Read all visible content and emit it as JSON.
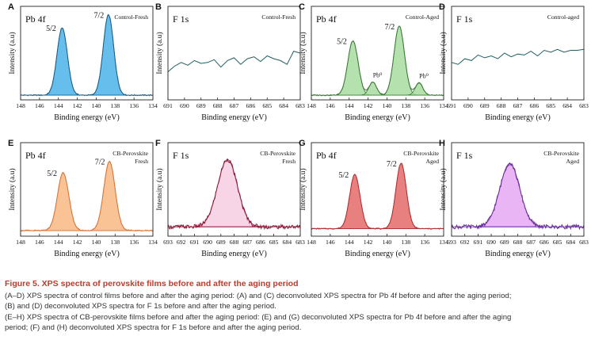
{
  "caption": {
    "title": "Figure 5.  XPS spectra of perovskite films before and after the aging period",
    "lines": [
      "(A–D) XPS spectra of control films before and after the aging period: (A) and (C) deconvoluted XPS spectra for Pb 4f before and after the aging period;",
      "(B) and (D) deconvoluted XPS spectra for F 1s before and after the aging period.",
      "(E–H) XPS spectra of CB-perovskite films before and after the aging period: (E) and (G) deconvoluted XPS spectra for Pb 4f before and after the aging",
      "period; (F) and (H) deconvoluted XPS spectra for F 1s before and after the aging period."
    ]
  },
  "chart_data": [
    {
      "panel": "A",
      "type": "line",
      "element": "Pb 4f",
      "sample": [
        "Control-Fresh"
      ],
      "xlabel": "Binding energy (eV)",
      "ylabel": "Intensity (a.u)",
      "xlim": [
        148,
        134
      ],
      "xticks": [
        "148",
        "146",
        "144",
        "142",
        "140",
        "138",
        "136",
        "134"
      ],
      "baseline": 0.05,
      "peaks": [
        {
          "center": 143.6,
          "width": 0.55,
          "height": 0.72,
          "label": "5/2"
        },
        {
          "center": 138.7,
          "width": 0.55,
          "height": 0.86,
          "label": "7/2"
        }
      ],
      "colors": {
        "line": "#1b5e86",
        "fill": "#4ab3e8"
      }
    },
    {
      "panel": "B",
      "type": "line",
      "element": "F 1s",
      "sample": [
        "Control-Fresh"
      ],
      "xlabel": "Binding energy (eV)",
      "ylabel": "Intensity (a.u)",
      "xlim": [
        691,
        683
      ],
      "xticks": [
        "691",
        "690",
        "689",
        "688",
        "687",
        "686",
        "685",
        "684",
        "683"
      ],
      "points": [
        [
          691,
          0.3
        ],
        [
          690.6,
          0.36
        ],
        [
          690.2,
          0.4
        ],
        [
          689.8,
          0.37
        ],
        [
          689.4,
          0.42
        ],
        [
          689,
          0.39
        ],
        [
          688.6,
          0.4
        ],
        [
          688.2,
          0.43
        ],
        [
          687.8,
          0.35
        ],
        [
          687.4,
          0.42
        ],
        [
          687,
          0.45
        ],
        [
          686.6,
          0.38
        ],
        [
          686.2,
          0.44
        ],
        [
          685.8,
          0.46
        ],
        [
          685.4,
          0.41
        ],
        [
          685,
          0.47
        ],
        [
          684.6,
          0.44
        ],
        [
          684.2,
          0.42
        ],
        [
          683.8,
          0.38
        ],
        [
          683.4,
          0.52
        ],
        [
          683,
          0.5
        ]
      ],
      "colors": {
        "line": "#1f5f5f",
        "fill": "none"
      }
    },
    {
      "panel": "C",
      "type": "line",
      "element": "Pb 4f",
      "sample": [
        "Control-Aged"
      ],
      "xlabel": "Binding energy (eV)",
      "ylabel": "Intensity (a.u)",
      "xlim": [
        148,
        134
      ],
      "xticks": [
        "148",
        "146",
        "144",
        "142",
        "140",
        "138",
        "136",
        "134"
      ],
      "baseline": 0.05,
      "peaks": [
        {
          "center": 143.6,
          "width": 0.55,
          "height": 0.58,
          "label": "5/2"
        },
        {
          "center": 141.5,
          "width": 0.4,
          "height": 0.14,
          "label": "Pb⁰"
        },
        {
          "center": 138.7,
          "width": 0.55,
          "height": 0.74,
          "label": "7/2"
        },
        {
          "center": 136.6,
          "width": 0.4,
          "height": 0.13,
          "label": "Pb⁰"
        }
      ],
      "colors": {
        "line": "#3a7a36",
        "fill": "#a8dca0"
      }
    },
    {
      "panel": "D",
      "type": "line",
      "element": "F 1s",
      "sample": [
        "Control-aged"
      ],
      "xlabel": "Binding energy (eV)",
      "ylabel": "Intensity (a.u)",
      "xlim": [
        691,
        683
      ],
      "xticks": [
        "691",
        "690",
        "689",
        "688",
        "687",
        "686",
        "685",
        "684",
        "683"
      ],
      "points": [
        [
          691,
          0.4
        ],
        [
          690.6,
          0.38
        ],
        [
          690.2,
          0.44
        ],
        [
          689.8,
          0.42
        ],
        [
          689.4,
          0.48
        ],
        [
          689,
          0.45
        ],
        [
          688.6,
          0.47
        ],
        [
          688.2,
          0.44
        ],
        [
          687.8,
          0.5
        ],
        [
          687.4,
          0.46
        ],
        [
          687,
          0.49
        ],
        [
          686.6,
          0.48
        ],
        [
          686.2,
          0.52
        ],
        [
          685.8,
          0.47
        ],
        [
          685.4,
          0.53
        ],
        [
          685,
          0.51
        ],
        [
          684.6,
          0.54
        ],
        [
          684.2,
          0.51
        ],
        [
          683.8,
          0.53
        ],
        [
          683.4,
          0.53
        ],
        [
          683,
          0.54
        ]
      ],
      "colors": {
        "line": "#1f5f5f",
        "fill": "none"
      }
    },
    {
      "panel": "E",
      "type": "line",
      "element": "Pb 4f",
      "sample": [
        "CB-Perovskite",
        "Fresh"
      ],
      "xlabel": "Binding energy (eV)",
      "ylabel": "Intensity (a.u)",
      "xlim": [
        148,
        134
      ],
      "xticks": [
        "148",
        "146",
        "144",
        "142",
        "140",
        "138",
        "136",
        "134"
      ],
      "baseline": 0.06,
      "peaks": [
        {
          "center": 143.5,
          "width": 0.6,
          "height": 0.62,
          "label": "5/2"
        },
        {
          "center": 138.6,
          "width": 0.6,
          "height": 0.74,
          "label": "7/2"
        }
      ],
      "colors": {
        "line": "#d8743a",
        "fill": "#f8b884"
      }
    },
    {
      "panel": "F",
      "type": "line",
      "element": "F 1s",
      "sample": [
        "CB-Perovskite",
        "Fresh"
      ],
      "xlabel": "Binding energy (eV)",
      "ylabel": "Intensity (a.u)",
      "xlim": [
        693,
        683
      ],
      "xticks": [
        "693",
        "692",
        "691",
        "690",
        "689",
        "688",
        "687",
        "686",
        "685",
        "684",
        "683"
      ],
      "baseline": 0.1,
      "peaks": [
        {
          "center": 688.5,
          "width": 0.75,
          "height": 0.72,
          "label": ""
        }
      ],
      "colors": {
        "line": "#8b1d3a",
        "fill": "#f7cce3"
      }
    },
    {
      "panel": "G",
      "type": "line",
      "element": "Pb 4f",
      "sample": [
        "CB-Perovskite",
        "Aged"
      ],
      "xlabel": "Binding energy (eV)",
      "ylabel": "Intensity (a.u)",
      "xlim": [
        148,
        134
      ],
      "xticks": [
        "148",
        "146",
        "144",
        "142",
        "140",
        "138",
        "136",
        "134"
      ],
      "baseline": 0.08,
      "peaks": [
        {
          "center": 143.4,
          "width": 0.55,
          "height": 0.58,
          "label": "5/2"
        },
        {
          "center": 138.5,
          "width": 0.55,
          "height": 0.7,
          "label": "7/2"
        }
      ],
      "colors": {
        "line": "#b23030",
        "fill": "#e46a6a"
      }
    },
    {
      "panel": "H",
      "type": "line",
      "element": "F 1s",
      "sample": [
        "CB-Perovskite",
        "Aged"
      ],
      "xlabel": "Binding energy (eV)",
      "ylabel": "Intensity (a.u)",
      "xlim": [
        693,
        683
      ],
      "xticks": [
        "693",
        "692",
        "691",
        "690",
        "689",
        "688",
        "687",
        "686",
        "685",
        "684",
        "683"
      ],
      "baseline": 0.1,
      "peaks": [
        {
          "center": 688.6,
          "width": 0.75,
          "height": 0.68,
          "label": ""
        }
      ],
      "colors": {
        "line": "#6a2c9a",
        "fill": "#e6a8f2"
      }
    }
  ]
}
